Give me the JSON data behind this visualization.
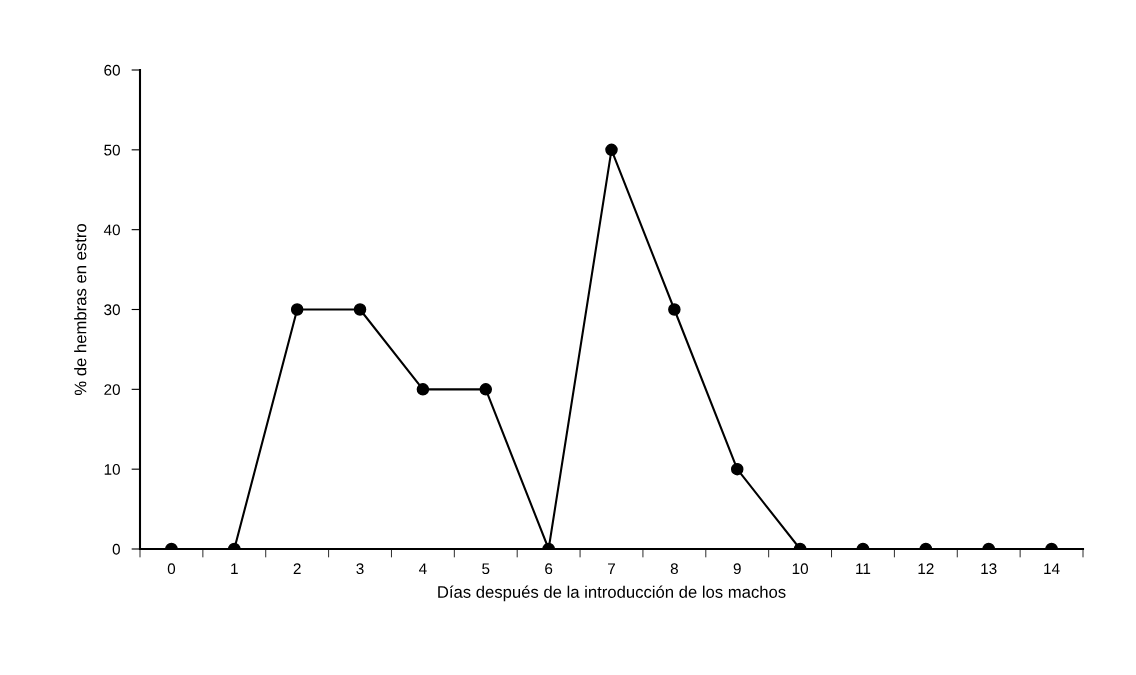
{
  "chart_data": {
    "type": "line",
    "xlabel": "Días después de la introducción de los machos",
    "ylabel": "% de hembras en estro",
    "categories": [
      "0",
      "1",
      "2",
      "3",
      "4",
      "5",
      "6",
      "7",
      "8",
      "9",
      "10",
      "11",
      "12",
      "13",
      "14"
    ],
    "series": [
      {
        "color": "#000000",
        "values": [
          0,
          0,
          30,
          30,
          20,
          20,
          0,
          50,
          30,
          10,
          0,
          0,
          0,
          0,
          0
        ]
      }
    ],
    "ylim": [
      0,
      60
    ],
    "yticks": [
      0,
      10,
      20,
      30,
      40,
      50,
      60
    ],
    "grid": false,
    "marker": "circle",
    "line_style": "solid"
  }
}
